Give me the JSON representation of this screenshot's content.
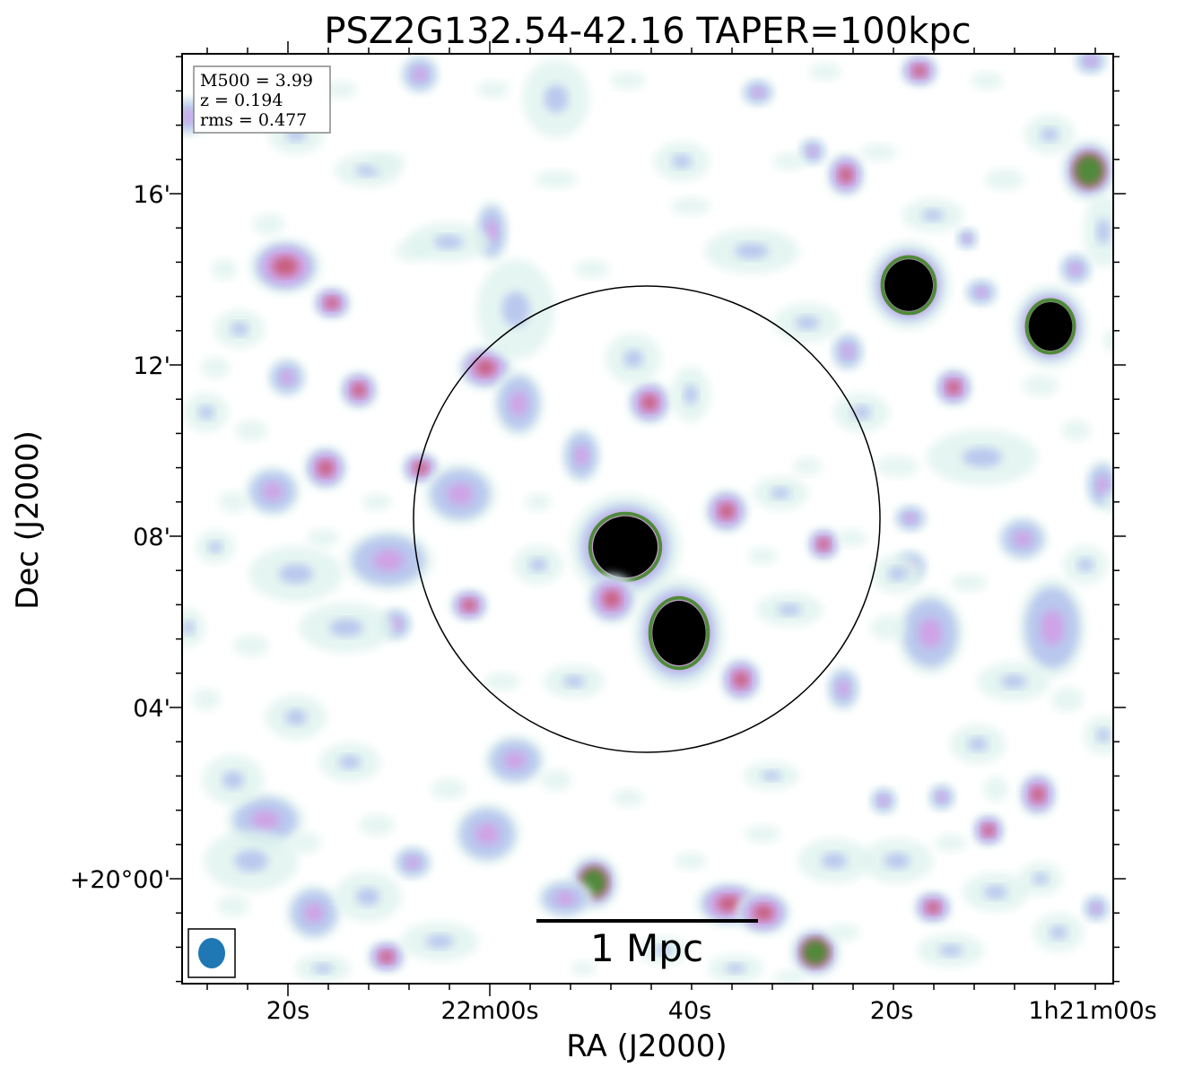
{
  "chart_data": {
    "type": "heatmap",
    "title": "PSZ2G132.54-42.16 TAPER=100kpc",
    "xlabel": "RA (J2000)",
    "ylabel": "Dec (J2000)",
    "x_ticks": [
      "20s",
      "22m00s",
      "40s",
      "20s",
      "1h21m00s"
    ],
    "y_ticks": [
      "16'",
      "12'",
      "08'",
      "04'",
      "+20°00'"
    ],
    "info_box": {
      "m500": "M500 = 3.99",
      "z": "z = 0.194",
      "rms": "rms = 0.477"
    },
    "scale_bar_label": "1 Mpc",
    "colormap": [
      "#dff3ee",
      "#b9c8ee",
      "#cfa3e6",
      "#c95e7f",
      "#4f8a3a",
      "#000000"
    ],
    "beam_color": "#1f77b4",
    "legend": "none",
    "grid": false
  }
}
